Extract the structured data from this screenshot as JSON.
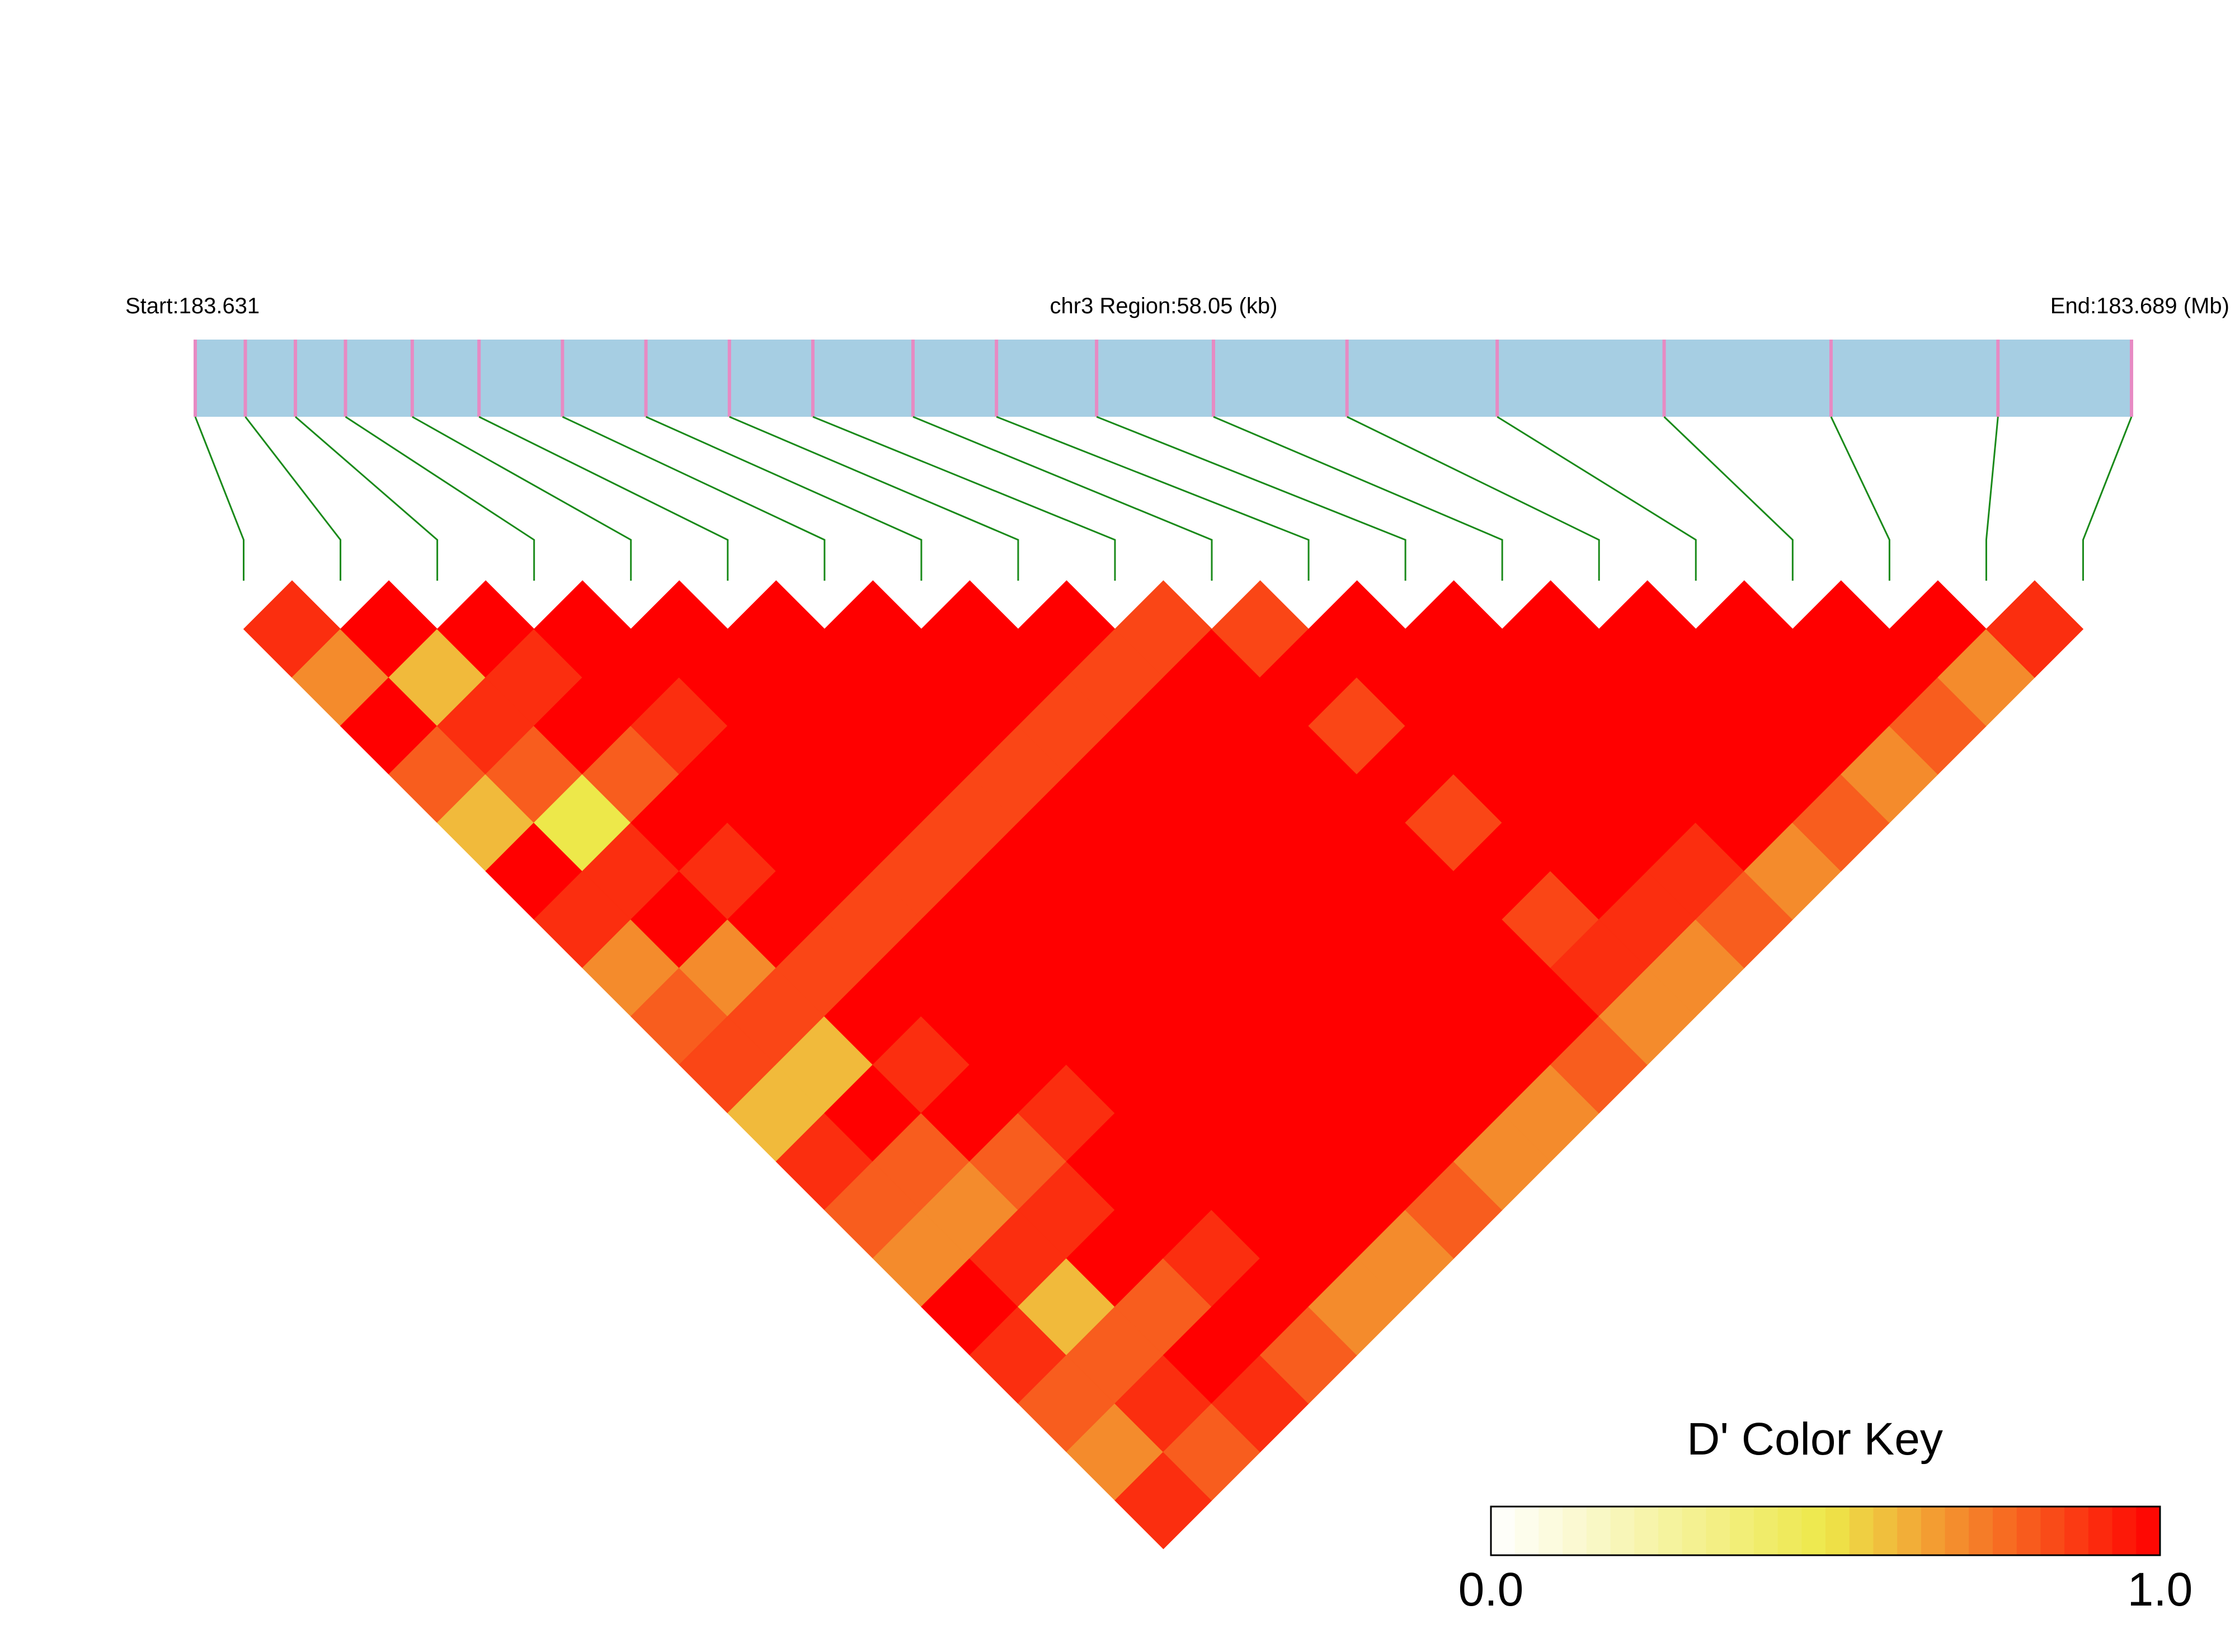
{
  "chart_data": {
    "type": "ld_heatmap",
    "start_label": "Start:183.631",
    "region_label": "chr3 Region:58.05 (kb)",
    "end_label": "End:183.689 (Mb)",
    "xlim": [
      183.631,
      183.689
    ],
    "snp_positions": [
      183.631,
      183.6325,
      183.634,
      183.6355,
      183.6375,
      183.6395,
      183.642,
      183.6445,
      183.647,
      183.6495,
      183.6525,
      183.655,
      183.658,
      183.6615,
      183.6655,
      183.67,
      183.675,
      183.68,
      183.685,
      183.689
    ],
    "track_color": "#a6cee3",
    "snp_color": "#e78ac3",
    "link_color": "#1a8a1a",
    "ld_matrix": [
      [
        0.9,
        0.7,
        1,
        0.8,
        0.6,
        1,
        0.9,
        0.7,
        0.8,
        0.85,
        0.6,
        0.9,
        0.8,
        0.7,
        1,
        0.9,
        0.8,
        0.7,
        0.9
      ],
      [
        1,
        0.6,
        0.9,
        0.8,
        0.5,
        0.9,
        1,
        0.7,
        0.85,
        0.6,
        1,
        0.8,
        0.7,
        0.9,
        0.6,
        0.8,
        0.9,
        0.8
      ],
      [
        1,
        0.9,
        1,
        0.8,
        1,
        0.9,
        1,
        0.85,
        1,
        0.9,
        1,
        0.8,
        0.9,
        1,
        0.8,
        1,
        0.9
      ],
      [
        1,
        1,
        0.9,
        1,
        1,
        1,
        0.85,
        1,
        1,
        1,
        0.9,
        1,
        1,
        0.9,
        1,
        0.8
      ],
      [
        1,
        1,
        1,
        1,
        1,
        0.85,
        1,
        1,
        1,
        1,
        1,
        1,
        1,
        1,
        0.7
      ],
      [
        1,
        1,
        1,
        1,
        0.85,
        1,
        1,
        1,
        1,
        1,
        1,
        1,
        1,
        0.7
      ],
      [
        1,
        1,
        1,
        0.85,
        1,
        1,
        1,
        1,
        1,
        1,
        1,
        1,
        0.8
      ],
      [
        1,
        1,
        0.85,
        1,
        1,
        1,
        1,
        1,
        1,
        1,
        1,
        0.7
      ],
      [
        1,
        0.85,
        1,
        1,
        1,
        1,
        1,
        1,
        1,
        1,
        0.7
      ],
      [
        0.85,
        1,
        1,
        1,
        1,
        1,
        1,
        1,
        1,
        0.8
      ],
      [
        0.85,
        1,
        0.85,
        1,
        0.85,
        1,
        0.85,
        0.9,
        0.7
      ],
      [
        1,
        1,
        1,
        1,
        1,
        1,
        0.9,
        0.7
      ],
      [
        1,
        1,
        1,
        1,
        1,
        0.9,
        0.8
      ],
      [
        1,
        1,
        1,
        1,
        1,
        0.7
      ],
      [
        1,
        1,
        1,
        1,
        0.8
      ],
      [
        1,
        1,
        1,
        0.7
      ],
      [
        1,
        1,
        0.8
      ],
      [
        1,
        0.7
      ],
      [
        0.9
      ]
    ],
    "colorbar": {
      "title": "D' Color Key",
      "lim": [
        0,
        1
      ],
      "ticks": [
        {
          "value": 0,
          "label": "0.0"
        },
        {
          "value": 1,
          "label": "1.0"
        }
      ],
      "colors": [
        "#ffffff",
        "#ede84a",
        "#ff0000"
      ]
    }
  }
}
